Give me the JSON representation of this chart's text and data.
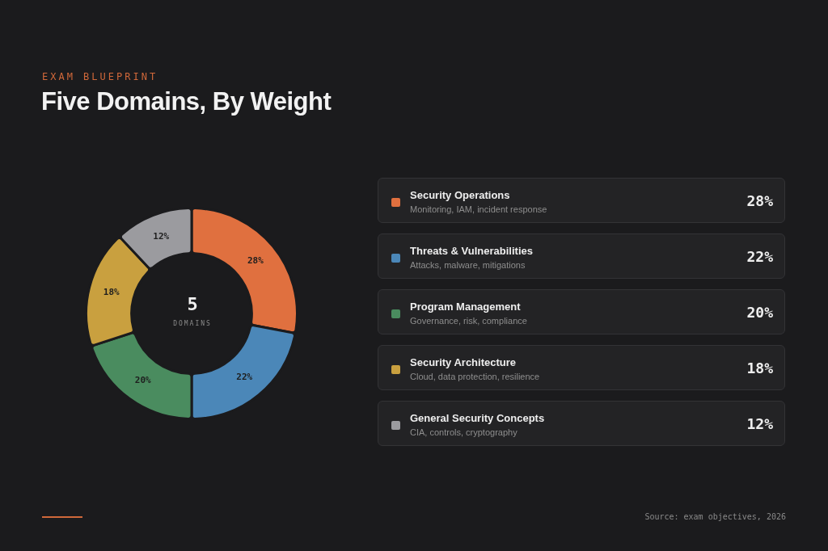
{
  "chart_data": {
    "type": "donut",
    "title": "Five Domains, By Weight",
    "subtitle": "EXAM BLUEPRINT",
    "categories": [
      "Security Operations",
      "Threats & Vulnerabilities",
      "Program Management",
      "Security Architecture",
      "General Security Concepts"
    ],
    "values": [
      28,
      22,
      20,
      18,
      12
    ],
    "value_labels": [
      "28%",
      "22%",
      "20%",
      "18%",
      "12%"
    ],
    "colors": [
      "#e0703f",
      "#4b87b8",
      "#4a8c5f",
      "#c9a03f",
      "#9b9b9f"
    ],
    "legend": "right",
    "annotations": [
      "5",
      "DOMAINS",
      "Monitoring, IAM, incident response",
      "Attacks, malware, mitigations",
      "Governance, risk, compliance",
      "Cloud, data protection, resilience",
      "CIA, controls, cryptography",
      "Source: exam objectives, 2026"
    ]
  }
}
